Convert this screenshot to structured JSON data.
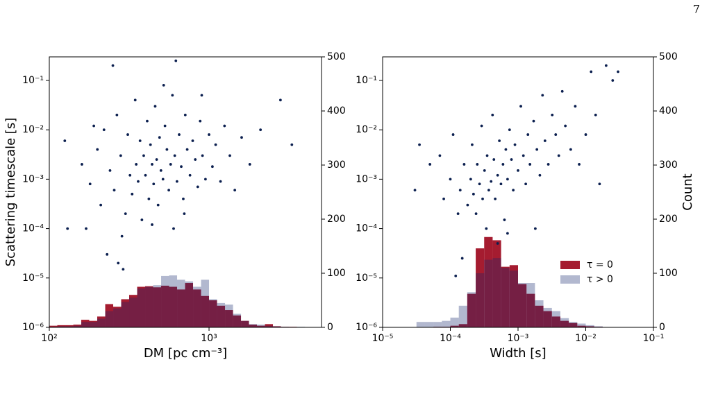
{
  "page_number": "7",
  "chart_data": [
    {
      "type": "scatter",
      "xlabel": "DM [pc cm⁻³]",
      "ylabel": "Scattering timescale [s]",
      "xscale": "log",
      "yscale": "log",
      "xlim": [
        100,
        5060
      ],
      "ylim": [
        1e-06,
        0.3
      ],
      "y2lim": [
        0,
        500
      ],
      "xticks": [
        {
          "value": 100,
          "label": "10²"
        },
        {
          "value": 1000,
          "label": "10³"
        }
      ],
      "yticks": [
        {
          "value": 1e-06,
          "label": "10⁻⁶"
        },
        {
          "value": 1e-05,
          "label": "10⁻⁵"
        },
        {
          "value": 0.0001,
          "label": "10⁻⁴"
        },
        {
          "value": 0.001,
          "label": "10⁻³"
        },
        {
          "value": 0.01,
          "label": "10⁻²"
        },
        {
          "value": 0.1,
          "label": "10⁻¹"
        }
      ],
      "y2ticks": [
        0,
        100,
        200,
        300,
        400,
        500
      ],
      "series": [
        {
          "color": "#0b1f4f",
          "x": [
            250,
            620,
            2800,
            3300,
            125,
            270,
            290,
            230,
            600,
            130,
            160,
            180,
            200,
            210,
            220,
            240,
            255,
            265,
            280,
            300,
            310,
            320,
            330,
            345,
            350,
            360,
            370,
            380,
            390,
            400,
            410,
            420,
            430,
            440,
            450,
            460,
            470,
            480,
            490,
            500,
            515,
            530,
            545,
            560,
            575,
            590,
            610,
            630,
            650,
            670,
            690,
            710,
            730,
            760,
            790,
            820,
            850,
            880,
            910,
            950,
            1000,
            1050,
            1100,
            1180,
            1250,
            1350,
            1450,
            1600,
            1800,
            2100,
            170,
            190,
            285,
            440,
            520,
            700,
            900
          ],
          "values": [
            0.2,
            0.25,
            0.04,
            0.005,
            0.006,
            2e-05,
            1.5e-05,
            3e-05,
            0.0001,
            0.0001,
            0.002,
            0.0008,
            0.004,
            0.0003,
            0.01,
            0.0015,
            0.0006,
            0.02,
            0.003,
            0.0002,
            0.008,
            0.0012,
            0.0005,
            0.04,
            0.002,
            0.0009,
            0.006,
            0.00015,
            0.003,
            0.0012,
            0.015,
            0.0004,
            0.005,
            0.002,
            0.0008,
            0.03,
            0.0025,
            0.0003,
            0.007,
            0.0015,
            0.001,
            0.012,
            0.004,
            0.0006,
            0.002,
            0.05,
            0.003,
            0.0009,
            0.008,
            0.0018,
            0.0004,
            0.02,
            0.004,
            0.0012,
            0.006,
            0.0025,
            0.0007,
            0.015,
            0.003,
            0.001,
            0.008,
            0.0018,
            0.005,
            0.0009,
            0.012,
            0.003,
            0.0006,
            0.007,
            0.002,
            0.01,
            0.0001,
            0.012,
            7e-05,
            0.00012,
            0.08,
            0.0002,
            0.05
          ]
        }
      ],
      "histogram": {
        "axis": "y2",
        "bins": [
          100,
          112.2,
          125.9,
          141.3,
          158.5,
          177.8,
          199.5,
          223.9,
          251.2,
          281.8,
          316.2,
          354.8,
          398.1,
          446.7,
          501.2,
          562.3,
          631.0,
          707.9,
          794.3,
          891.3,
          1000,
          1122,
          1259,
          1413,
          1585,
          1778,
          1995,
          2239,
          2512,
          2818,
          3162,
          3548,
          3981
        ],
        "series": [
          {
            "color": "#a51c30",
            "alpha": 1,
            "values": [
              3,
              4,
              4,
              5,
              14,
              12,
              20,
              43,
              38,
              52,
              60,
              75,
              76,
              74,
              77,
              75,
              70,
              82,
              70,
              58,
              50,
              40,
              32,
              22,
              12,
              5,
              3,
              6,
              2,
              1,
              1,
              0
            ]
          },
          {
            "color": "#14286e",
            "alpha": 0.33,
            "values": [
              1,
              2,
              2,
              3,
              10,
              10,
              16,
              30,
              35,
              47,
              55,
              72,
              75,
              78,
              95,
              96,
              88,
              85,
              75,
              88,
              52,
              45,
              42,
              25,
              12,
              6,
              5,
              3,
              2,
              1,
              0,
              1
            ]
          }
        ]
      }
    },
    {
      "type": "scatter",
      "xlabel": "Width [s]",
      "y2label": "Count",
      "xscale": "log",
      "yscale": "log",
      "xlim": [
        1e-05,
        0.1
      ],
      "ylim": [
        1e-06,
        0.3
      ],
      "y2lim": [
        0,
        500
      ],
      "xticks": [
        {
          "value": 1e-05,
          "label": "10⁻⁵"
        },
        {
          "value": 0.0001,
          "label": "10⁻⁴"
        },
        {
          "value": 0.001,
          "label": "10⁻³"
        },
        {
          "value": 0.01,
          "label": "10⁻²"
        },
        {
          "value": 0.1,
          "label": "10⁻¹"
        }
      ],
      "yticks": [
        {
          "value": 1e-06,
          "label": "10⁻⁶"
        },
        {
          "value": 1e-05,
          "label": "10⁻⁵"
        },
        {
          "value": 0.0001,
          "label": "10⁻⁴"
        },
        {
          "value": 0.001,
          "label": "10⁻³"
        },
        {
          "value": 0.01,
          "label": "10⁻²"
        },
        {
          "value": 0.1,
          "label": "10⁻¹"
        }
      ],
      "y2ticks": [
        0,
        100,
        200,
        300,
        400,
        500
      ],
      "legend": "lower right",
      "series": [
        {
          "color": "#0b1f4f",
          "x": [
            3e-05,
            3.5e-05,
            5e-05,
            7e-05,
            8e-05,
            0.0001,
            0.00011,
            0.00012,
            0.00013,
            0.00014,
            0.00015,
            0.00016,
            0.00018,
            0.0002,
            0.00021,
            0.00022,
            0.00024,
            0.00025,
            0.00027,
            0.00029,
            0.0003,
            0.00032,
            0.00034,
            0.00035,
            0.00037,
            0.0004,
            0.00042,
            0.00044,
            0.00046,
            0.0005,
            0.00053,
            0.00056,
            0.0006,
            0.00063,
            0.00066,
            0.0007,
            0.00075,
            0.0008,
            0.00085,
            0.0009,
            0.001,
            0.0011,
            0.0012,
            0.0013,
            0.0014,
            0.0015,
            0.0017,
            0.0019,
            0.0021,
            0.0023,
            0.0025,
            0.0028,
            0.0032,
            0.0036,
            0.004,
            0.0045,
            0.005,
            0.006,
            0.007,
            0.008,
            0.01,
            0.012,
            0.014,
            0.016,
            0.02,
            0.025,
            0.03,
            0.0007,
            0.0005,
            0.0018
          ],
          "values": [
            0.0006,
            0.005,
            0.002,
            0.003,
            0.0004,
            0.001,
            0.008,
            1.1e-05,
            0.0002,
            0.0006,
            2.5e-05,
            0.002,
            0.0003,
            0.001,
            0.005,
            0.0005,
            0.0002,
            0.002,
            0.0008,
            0.012,
            0.0004,
            0.0015,
            0.0001,
            0.003,
            0.0006,
            0.0009,
            0.02,
            0.0025,
            0.0004,
            0.0012,
            0.006,
            0.0008,
            0.002,
            0.00015,
            0.004,
            0.001,
            0.01,
            0.0025,
            0.0006,
            0.005,
            0.0015,
            0.03,
            0.003,
            0.0008,
            0.008,
            0.002,
            0.015,
            0.004,
            0.0012,
            0.05,
            0.006,
            0.002,
            0.02,
            0.008,
            0.003,
            0.06,
            0.012,
            0.004,
            0.03,
            0.002,
            0.008,
            0.15,
            0.02,
            0.0008,
            0.2,
            0.1,
            0.15,
            8e-05,
            5e-05,
            0.0001
          ]
        }
      ],
      "histogram": {
        "axis": "y2",
        "bins": [
          3.162e-05,
          4.217e-05,
          5.623e-05,
          7.499e-05,
          0.0001,
          0.0001334,
          0.0001778,
          0.0002371,
          0.0003162,
          0.0004217,
          0.0005623,
          0.0007499,
          0.001,
          0.001334,
          0.001778,
          0.002371,
          0.003162,
          0.004217,
          0.005623,
          0.007499,
          0.01,
          0.01334,
          0.01778
        ],
        "series": [
          {
            "name": "τ = 0",
            "color": "#a51c30",
            "alpha": 1,
            "values": [
              0,
              0,
              1,
              1,
              3,
              6,
              62,
              146,
              167,
              161,
              112,
              115,
              80,
              62,
              40,
              30,
              20,
              12,
              8,
              3,
              2,
              1
            ]
          },
          {
            "name": "τ > 0",
            "color": "#14286e",
            "alpha": 0.33,
            "values": [
              10,
              10,
              10,
              12,
              18,
              40,
              65,
              100,
              125,
              128,
              110,
              105,
              82,
              82,
              50,
              36,
              30,
              17,
              10,
              7,
              4,
              2
            ]
          }
        ]
      }
    }
  ]
}
